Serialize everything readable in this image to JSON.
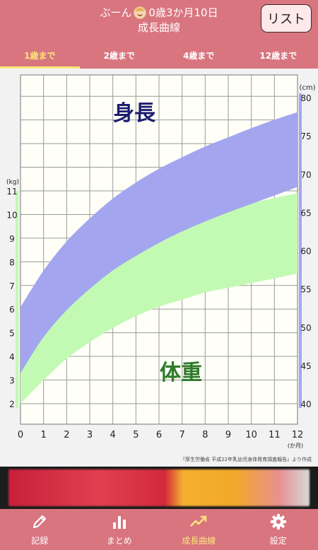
{
  "header": {
    "baby_name": "ぶーん",
    "age": "0歳3か月10日",
    "title": "成長曲線",
    "list_button": "リスト"
  },
  "tabs": [
    {
      "label": "1歳まで",
      "active": true
    },
    {
      "label": "2歳まで",
      "active": false
    },
    {
      "label": "4歳まで",
      "active": false
    },
    {
      "label": "12歳まで",
      "active": false
    }
  ],
  "chart_data": {
    "type": "area",
    "height_label": "身長",
    "weight_label": "体重",
    "x_unit": "(か月)",
    "x": [
      0,
      1,
      2,
      3,
      4,
      5,
      6,
      7,
      8,
      9,
      10,
      11,
      12
    ],
    "xlim": [
      0,
      12
    ],
    "height_axis": {
      "unit": "(cm)",
      "ylim": [
        40,
        80
      ],
      "ticks": [
        40,
        45,
        50,
        55,
        60,
        65,
        70,
        75,
        80
      ]
    },
    "weight_axis": {
      "unit": "(kg)",
      "ylim": [
        2,
        11
      ],
      "ticks": [
        2,
        3,
        4,
        5,
        6,
        7,
        8,
        9,
        10,
        11
      ]
    },
    "series": [
      {
        "name": "身長",
        "color": "#a3a6ef",
        "lower": [
          44.0,
          48.7,
          52.2,
          55.0,
          57.4,
          59.3,
          61.0,
          62.5,
          63.8,
          65.0,
          66.1,
          67.2,
          68.3
        ],
        "upper": [
          52.6,
          57.4,
          61.2,
          64.2,
          66.8,
          68.9,
          70.7,
          72.2,
          73.6,
          74.8,
          76.0,
          77.1,
          78.1
        ]
      },
      {
        "name": "体重",
        "color": "#c2fab4",
        "lower": [
          2.0,
          3.0,
          3.9,
          4.6,
          5.2,
          5.7,
          6.1,
          6.4,
          6.7,
          6.9,
          7.1,
          7.3,
          7.5
        ],
        "upper": [
          3.8,
          5.4,
          6.9,
          7.9,
          8.6,
          9.1,
          9.5,
          9.8,
          10.1,
          10.3,
          10.5,
          10.7,
          10.9
        ]
      }
    ],
    "grid": true,
    "source": "『厚生労働省 平成22年乳幼児身体発育調査報告』より作成"
  },
  "bottom_nav": [
    {
      "label": "記録",
      "icon": "pencil-icon",
      "active": false
    },
    {
      "label": "まとめ",
      "icon": "bar-chart-icon",
      "active": false
    },
    {
      "label": "成長曲線",
      "icon": "trend-line-icon",
      "active": true
    },
    {
      "label": "設定",
      "icon": "gear-icon",
      "active": false
    }
  ]
}
